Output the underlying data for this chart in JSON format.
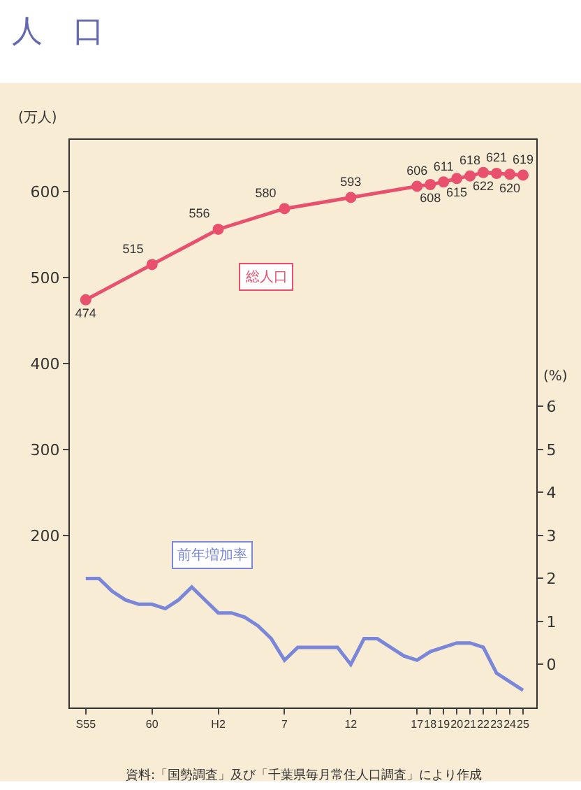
{
  "chart_data": {
    "type": "line",
    "title": "人　口",
    "ylabel": "(万人)",
    "y2label": "(%)",
    "categories": [
      "S55",
      null,
      null,
      null,
      null,
      "60",
      null,
      null,
      null,
      null,
      "H2",
      null,
      null,
      null,
      null,
      "7",
      null,
      null,
      null,
      null,
      "12",
      null,
      null,
      null,
      null,
      "17",
      "18",
      "19",
      "20",
      "21",
      "22",
      "23",
      "24",
      "25"
    ],
    "series": [
      {
        "name": "総人口",
        "color": "#e8506e",
        "marker": "circle",
        "values": [
          474,
          null,
          null,
          null,
          null,
          515,
          null,
          null,
          null,
          null,
          556,
          null,
          null,
          null,
          null,
          580,
          null,
          null,
          null,
          null,
          593,
          null,
          null,
          null,
          null,
          606,
          608,
          611,
          615,
          618,
          622,
          621,
          620,
          619
        ],
        "value_labels": [
          "474",
          null,
          null,
          null,
          null,
          "515",
          null,
          null,
          null,
          null,
          "556",
          null,
          null,
          null,
          null,
          "580",
          null,
          null,
          null,
          null,
          "593",
          null,
          null,
          null,
          null,
          "606",
          "608",
          "611",
          "615",
          "618",
          "622",
          "621",
          "620",
          "619"
        ]
      },
      {
        "name": "前年増加率",
        "color": "#7a86d8",
        "axis": "y2",
        "marker": "none",
        "values": [
          2.0,
          2.0,
          1.7,
          1.5,
          1.4,
          1.4,
          1.3,
          1.5,
          1.8,
          1.5,
          1.2,
          1.2,
          1.1,
          0.9,
          0.6,
          0.1,
          0.4,
          0.4,
          0.4,
          0.4,
          0.0,
          0.6,
          0.6,
          0.4,
          0.2,
          0.1,
          0.3,
          0.4,
          0.5,
          0.5,
          0.4,
          -0.2,
          -0.4,
          -0.6
        ]
      }
    ],
    "grid": false,
    "legend": false,
    "ylim": [
      0,
      660
    ],
    "yticks": [
      200,
      300,
      400,
      500,
      600
    ],
    "y2lim": [
      -1,
      12.2
    ],
    "y2ticks": [
      0,
      1,
      2,
      3,
      4,
      5,
      6
    ],
    "annotations": [
      "資料:「国勢調査」及び「千葉県毎月常住人口調査」により作成"
    ]
  }
}
